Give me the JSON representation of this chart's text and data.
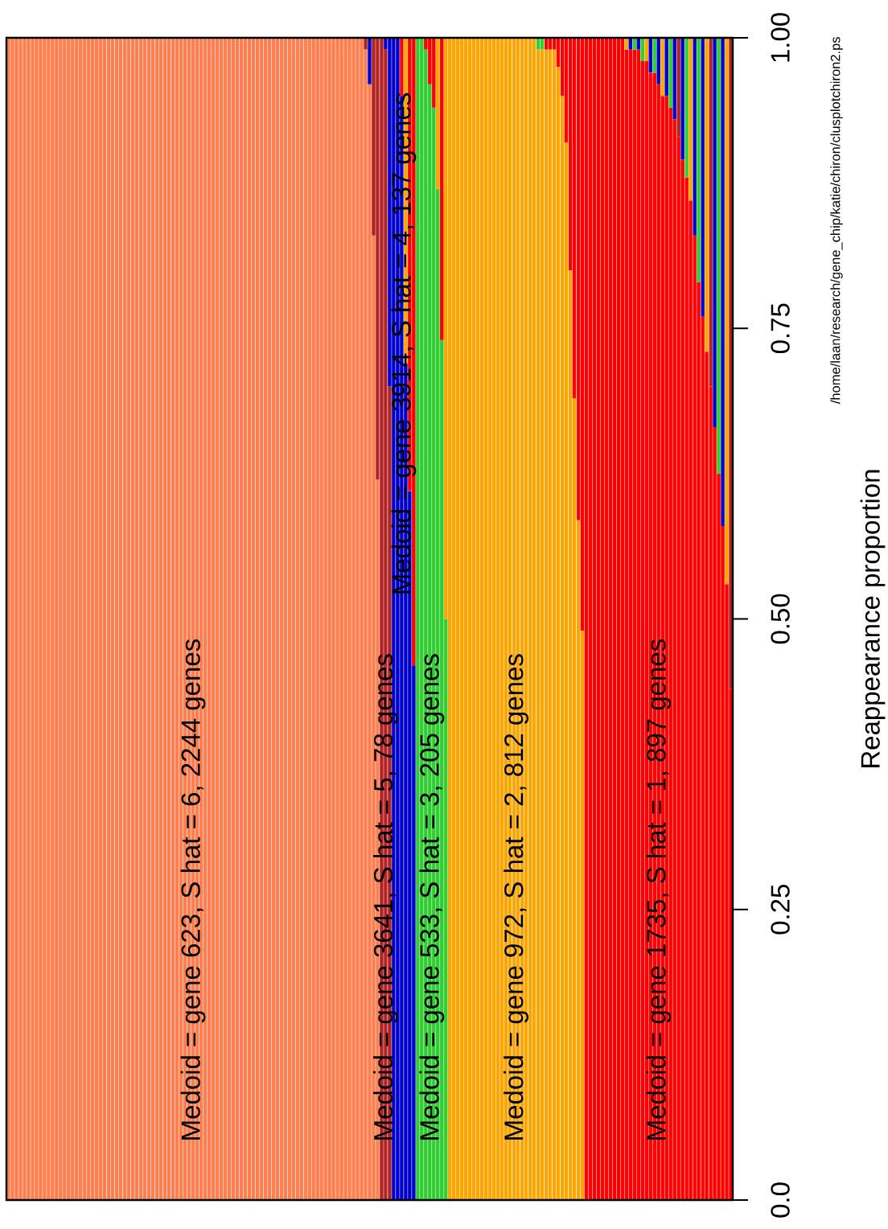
{
  "chart_data": {
    "type": "bar",
    "stacked": true,
    "ylabel": "Reappearance proportion",
    "ylim": [
      0,
      1
    ],
    "yticks": [
      {
        "value": 0,
        "label": "0.0"
      },
      0.25,
      {
        "value": 0.5,
        "label": "0.50"
      },
      0.75,
      {
        "value": 1,
        "label": "1.00"
      }
    ],
    "tick_labels": "y",
    "categories": [
      null,
      null,
      null,
      null,
      null,
      null,
      null,
      null,
      null,
      null,
      null,
      null,
      null,
      null,
      null,
      null,
      null,
      null,
      null,
      null,
      null,
      null,
      null,
      null,
      null,
      null,
      null,
      null,
      null,
      null,
      null,
      null,
      null,
      null,
      null,
      null,
      null,
      null,
      null,
      null,
      null,
      null,
      null,
      null,
      null,
      null,
      null,
      null,
      null,
      null,
      null,
      null,
      null,
      null,
      null,
      null,
      null,
      null,
      null,
      null,
      null,
      null,
      null,
      null,
      null,
      null,
      null,
      null,
      null,
      null,
      null,
      null,
      null,
      null,
      null,
      null,
      null,
      null,
      null,
      null,
      null,
      null,
      null,
      null,
      null,
      null,
      null,
      null,
      null,
      null,
      null,
      null,
      null,
      null,
      null,
      null,
      null,
      null,
      null,
      null,
      null,
      null,
      null,
      null,
      null,
      null,
      null,
      null,
      null,
      null,
      null,
      null,
      null,
      null,
      null,
      null,
      null,
      null,
      null,
      null,
      null,
      null,
      null,
      null,
      null,
      null,
      null,
      null,
      null,
      null,
      null,
      null,
      null,
      null,
      null,
      null,
      null,
      null,
      null,
      null,
      null,
      null,
      null,
      null,
      null,
      null,
      null,
      null,
      null,
      null,
      null,
      null,
      null,
      null,
      null,
      null,
      null,
      null,
      null,
      null,
      null,
      null,
      null,
      null,
      null,
      null,
      null,
      null,
      null,
      null,
      null,
      null,
      null,
      null,
      null,
      null,
      null,
      null,
      null,
      null,
      null
    ],
    "series": [
      {
        "values": [
          1,
          1,
          1,
          1,
          1,
          1,
          1,
          1,
          1,
          1,
          1,
          1,
          1,
          1,
          1,
          1,
          1,
          1,
          1,
          1,
          1,
          1,
          1,
          1,
          1,
          1,
          1,
          1,
          1,
          1,
          1,
          1,
          1,
          1,
          1,
          1,
          1,
          1,
          1,
          1,
          1,
          1,
          1,
          1,
          1,
          1,
          1,
          1,
          1,
          1,
          1,
          1,
          1,
          1,
          1,
          1,
          1,
          1,
          1,
          1,
          1,
          1,
          1,
          1,
          1,
          1,
          1,
          1,
          1,
          1,
          1,
          1,
          1,
          1,
          1,
          1,
          1,
          1,
          1,
          1,
          1,
          1,
          1,
          1,
          1,
          1,
          1,
          1,
          1,
          0.99,
          0.96,
          0.83,
          0.62,
          1,
          0.99,
          0.7,
          1,
          1,
          0.95,
          0.72,
          0.61,
          0.46,
          1,
          1,
          0.99,
          0.96,
          0.94,
          0.87,
          0.74,
          0.5,
          1,
          1,
          1,
          1,
          1,
          1,
          1,
          1,
          1,
          1,
          1,
          1,
          1,
          1,
          1,
          1,
          1,
          1,
          1,
          1,
          1,
          1,
          0.99,
          0.99,
          0.99,
          0.99,
          0.99,
          0.975,
          0.95,
          0.91,
          0.8,
          0.69,
          0.585,
          0.49,
          1,
          1,
          1,
          1,
          1,
          1,
          1,
          1,
          1,
          1,
          0.99,
          0.99,
          0.99,
          0.99,
          0.98,
          0.98,
          0.97,
          0.97,
          0.96,
          0.95,
          0.95,
          0.94,
          0.93,
          0.915,
          0.895,
          0.88,
          0.86,
          0.83,
          0.79,
          0.76,
          0.73,
          0.7,
          0.665,
          0.625,
          0.58,
          0.53,
          0.44
        ],
        "colors": [
          "#ff7f50",
          "#ff7f50",
          "#ff7f50",
          "#ff7f50",
          "#ff7f50",
          "#ff7f50",
          "#ff7f50",
          "#ff7f50",
          "#ff7f50",
          "#ff7f50",
          "#ff7f50",
          "#ff7f50",
          "#ff7f50",
          "#ff7f50",
          "#ff7f50",
          "#ff7f50",
          "#ff7f50",
          "#ff7f50",
          "#ff7f50",
          "#ff7f50",
          "#ff7f50",
          "#ff7f50",
          "#ff7f50",
          "#ff7f50",
          "#ff7f50",
          "#ff7f50",
          "#ff7f50",
          "#ff7f50",
          "#ff7f50",
          "#ff7f50",
          "#ff7f50",
          "#ff7f50",
          "#ff7f50",
          "#ff7f50",
          "#ff7f50",
          "#ff7f50",
          "#ff7f50",
          "#ff7f50",
          "#ff7f50",
          "#ff7f50",
          "#ff7f50",
          "#ff7f50",
          "#ff7f50",
          "#ff7f50",
          "#ff7f50",
          "#ff7f50",
          "#ff7f50",
          "#ff7f50",
          "#ff7f50",
          "#ff7f50",
          "#ff7f50",
          "#ff7f50",
          "#ff7f50",
          "#ff7f50",
          "#ff7f50",
          "#ff7f50",
          "#ff7f50",
          "#ff7f50",
          "#ff7f50",
          "#ff7f50",
          "#ff7f50",
          "#ff7f50",
          "#ff7f50",
          "#ff7f50",
          "#ff7f50",
          "#ff7f50",
          "#ff7f50",
          "#ff7f50",
          "#ff7f50",
          "#ff7f50",
          "#ff7f50",
          "#ff7f50",
          "#ff7f50",
          "#ff7f50",
          "#ff7f50",
          "#ff7f50",
          "#ff7f50",
          "#ff7f50",
          "#ff7f50",
          "#ff7f50",
          "#ff7f50",
          "#ff7f50",
          "#ff7f50",
          "#ff7f50",
          "#ff7f50",
          "#ff7f50",
          "#ff7f50",
          "#ff7f50",
          "#ff7f50",
          "#ff7f50",
          "#ff7f50",
          "#ff7f50",
          "#ff7f50",
          "#b22222",
          "#b22222",
          "#b22222",
          "#0000cd",
          "#0000cd",
          "#0000cd",
          "#0000cd",
          "#0000cd",
          "#0000cd",
          "#32cd32",
          "#32cd32",
          "#32cd32",
          "#32cd32",
          "#32cd32",
          "#32cd32",
          "#32cd32",
          "#32cd32",
          "#ffa500",
          "#ffa500",
          "#ffa500",
          "#ffa500",
          "#ffa500",
          "#ffa500",
          "#ffa500",
          "#ffa500",
          "#ffa500",
          "#ffa500",
          "#ffa500",
          "#ffa500",
          "#ffa500",
          "#ffa500",
          "#ffa500",
          "#ffa500",
          "#ffa500",
          "#ffa500",
          "#ffa500",
          "#ffa500",
          "#ffa500",
          "#ffa500",
          "#ffa500",
          "#ffa500",
          "#ffa500",
          "#ffa500",
          "#ffa500",
          "#ffa500",
          "#ffa500",
          "#ffa500",
          "#ffa500",
          "#ffa500",
          "#ffa500",
          "#ffa500",
          "#ff0000",
          "#ff0000",
          "#ff0000",
          "#ff0000",
          "#ff0000",
          "#ff0000",
          "#ff0000",
          "#ff0000",
          "#ff0000",
          "#ff0000",
          "#ff0000",
          "#ff0000",
          "#ff0000",
          "#ff0000",
          "#ff0000",
          "#ff0000",
          "#ff0000",
          "#ff0000",
          "#ff0000",
          "#ff0000",
          "#ff0000",
          "#ff0000",
          "#ff0000",
          "#ff0000",
          "#ff0000",
          "#ff0000",
          "#ff0000",
          "#ff0000",
          "#ff0000",
          "#ff0000",
          "#ff0000",
          "#ff0000",
          "#ff0000",
          "#ff0000",
          "#ff0000",
          "#ff0000",
          "#ff0000"
        ]
      },
      {
        "values": [
          null,
          null,
          null,
          null,
          null,
          null,
          null,
          null,
          null,
          null,
          null,
          null,
          null,
          null,
          null,
          null,
          null,
          null,
          null,
          null,
          null,
          null,
          null,
          null,
          null,
          null,
          null,
          null,
          null,
          null,
          null,
          null,
          null,
          null,
          null,
          null,
          null,
          null,
          null,
          null,
          null,
          null,
          null,
          null,
          null,
          null,
          null,
          null,
          null,
          null,
          null,
          null,
          null,
          null,
          null,
          null,
          null,
          null,
          null,
          null,
          null,
          null,
          null,
          null,
          null,
          null,
          null,
          null,
          null,
          null,
          null,
          null,
          null,
          null,
          null,
          null,
          null,
          null,
          null,
          null,
          null,
          null,
          null,
          null,
          null,
          null,
          null,
          null,
          null,
          0.01,
          0.04,
          0.17,
          0.38,
          null,
          0.01,
          0.3,
          null,
          null,
          0.05,
          0.28,
          0.39,
          0.54,
          null,
          null,
          0.01,
          0.04,
          0.06,
          0.13,
          0.26,
          0.5,
          null,
          null,
          null,
          null,
          null,
          null,
          null,
          null,
          null,
          null,
          null,
          null,
          null,
          null,
          null,
          null,
          null,
          null,
          null,
          null,
          null,
          null,
          0.01,
          0.01,
          0.01,
          0.01,
          0.01,
          0.025,
          0.05,
          0.09,
          0.2,
          0.31,
          0.415,
          0.51,
          null,
          null,
          null,
          null,
          null,
          null,
          null,
          null,
          null,
          null,
          0.01,
          0.01,
          0.01,
          0.01,
          0.02,
          0.02,
          0.03,
          0.03,
          0.04,
          0.05,
          0.05,
          0.06,
          0.07,
          0.085,
          0.105,
          0.12,
          0.14,
          0.17,
          0.21,
          0.24,
          0.27,
          0.3,
          0.335,
          0.375,
          0.42,
          0.47,
          0.56
        ],
        "colors": [
          null,
          null,
          null,
          null,
          null,
          null,
          null,
          null,
          null,
          null,
          null,
          null,
          null,
          null,
          null,
          null,
          null,
          null,
          null,
          null,
          null,
          null,
          null,
          null,
          null,
          null,
          null,
          null,
          null,
          null,
          null,
          null,
          null,
          null,
          null,
          null,
          null,
          null,
          null,
          null,
          null,
          null,
          null,
          null,
          null,
          null,
          null,
          null,
          null,
          null,
          null,
          null,
          null,
          null,
          null,
          null,
          null,
          null,
          null,
          null,
          null,
          null,
          null,
          null,
          null,
          null,
          null,
          null,
          null,
          null,
          null,
          null,
          null,
          null,
          null,
          null,
          null,
          null,
          null,
          null,
          null,
          null,
          null,
          null,
          null,
          null,
          null,
          null,
          null,
          "#b22222",
          "#0000cd",
          "#b22222",
          "#b22222",
          null,
          "#0000cd",
          "#0000cd",
          null,
          null,
          "#ff0000",
          "#ffa500",
          "#ff0000",
          "#ff0000",
          null,
          null,
          "#ff0000",
          "#ff0000",
          "#ff0000",
          "#ffa500",
          "#ff0000",
          "#ffa500",
          null,
          null,
          null,
          null,
          null,
          null,
          null,
          null,
          null,
          null,
          null,
          null,
          null,
          null,
          null,
          null,
          null,
          null,
          null,
          null,
          null,
          null,
          "#32cd32",
          "#32cd32",
          "#ff0000",
          "#ff0000",
          "#ff0000",
          "#ff0000",
          "#ff0000",
          "#ff0000",
          "#ff0000",
          "#ff0000",
          "#ff0000",
          "#ff0000",
          null,
          null,
          null,
          null,
          null,
          null,
          null,
          null,
          null,
          null,
          "#ffa500",
          "#0000cd",
          "#32cd32",
          "#0000cd",
          "#32cd32",
          "#ffa500",
          "#0000cd",
          "#32cd32",
          "#0000cd",
          "#ffa500",
          "#0000cd",
          "#32cd32",
          "#0000cd",
          "#b22222",
          "#0000cd",
          "#32cd32",
          "#ffa500",
          "#0000cd",
          "#32cd32",
          "#0000cd",
          "#ffa500",
          "#b22222",
          "#0000cd",
          "#32cd32",
          "#0000cd",
          "#ffa500",
          "#b22222"
        ]
      }
    ],
    "annotations": [
      "Medoid = gene 623, S hat = 6, 2244 genes",
      "Medoid = gene 3641, S hat = 5, 78 genes",
      "Medoid = gene 3914, S hat = 4, 137 genes",
      "Medoid = gene 533, S hat = 3, 205 genes",
      "Medoid = gene 972, S hat = 2, 812 genes",
      "Medoid = gene 1735, S hat = 1, 897 genes",
      "/home/laan/research/gene_chip/katie/chiron/clusplotchiron2.ps"
    ]
  }
}
